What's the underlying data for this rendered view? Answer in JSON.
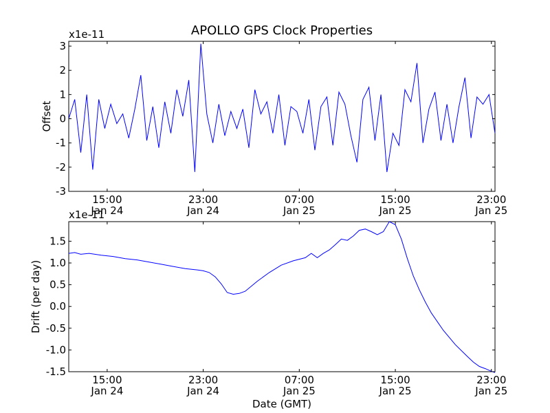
{
  "chart_data": {
    "title": "APOLLO GPS Clock Properties",
    "xlabel": "Date (GMT)",
    "x_ticks": [
      {
        "time": "15:00",
        "date": "Jan 24",
        "hours": 15
      },
      {
        "time": "23:00",
        "date": "Jan 24",
        "hours": 23
      },
      {
        "time": "07:00",
        "date": "Jan 25",
        "hours": 31
      },
      {
        "time": "15:00",
        "date": "Jan 25",
        "hours": 39
      },
      {
        "time": "23:00",
        "date": "Jan 25",
        "hours": 47
      }
    ],
    "x_range_hours": [
      11.8,
      47.3
    ],
    "colors": {
      "series": "#0000ff"
    },
    "panels": [
      {
        "type": "line",
        "ylabel": "Offset",
        "offset_text": "x1e-11",
        "ylim": [
          -3,
          3.2
        ],
        "y_ticks": [
          "-3",
          "-2",
          "-1",
          "0",
          "1",
          "2",
          "3"
        ],
        "y_tick_values": [
          -3,
          -2,
          -1,
          0,
          1,
          2,
          3
        ],
        "series": [
          {
            "x": [
              11.8,
              12.3,
              12.8,
              13.3,
              13.8,
              14.3,
              14.8,
              15.3,
              15.8,
              16.3,
              16.8,
              17.3,
              17.8,
              18.3,
              18.8,
              19.3,
              19.8,
              20.3,
              20.8,
              21.3,
              21.8,
              22.3,
              22.8,
              23.3,
              23.8,
              24.3,
              24.8,
              25.3,
              25.8,
              26.3,
              26.8,
              27.3,
              27.8,
              28.3,
              28.8,
              29.3,
              29.8,
              30.3,
              30.8,
              31.3,
              31.8,
              32.3,
              32.8,
              33.3,
              33.8,
              34.3,
              34.8,
              35.3,
              35.8,
              36.3,
              36.8,
              37.3,
              37.8,
              38.3,
              38.8,
              39.3,
              39.8,
              40.3,
              40.8,
              41.3,
              41.8,
              42.3,
              42.8,
              43.3,
              43.8,
              44.3,
              44.8,
              45.3,
              45.8,
              46.3,
              46.8,
              47.3
            ],
            "values": [
              0.0,
              0.8,
              -1.4,
              1.0,
              -2.1,
              0.8,
              -0.4,
              0.6,
              -0.2,
              0.2,
              -0.8,
              0.4,
              1.8,
              -0.9,
              0.5,
              -1.2,
              0.7,
              -0.6,
              1.2,
              0.1,
              1.6,
              -2.2,
              3.1,
              0.2,
              -1.0,
              0.6,
              -0.7,
              0.3,
              -0.4,
              0.4,
              -1.2,
              1.2,
              0.2,
              0.7,
              -0.6,
              1.0,
              -1.1,
              0.5,
              0.3,
              -0.6,
              0.8,
              -1.3,
              0.5,
              0.9,
              -1.1,
              1.1,
              0.6,
              -0.7,
              -1.8,
              0.8,
              1.3,
              -0.9,
              1.0,
              -2.2,
              -0.6,
              -1.1,
              1.2,
              0.7,
              2.3,
              -1.0,
              0.4,
              1.1,
              -0.9,
              0.6,
              -1.0,
              0.5,
              1.7,
              -0.8,
              0.9,
              0.6,
              1.0,
              -0.6
            ]
          }
        ]
      },
      {
        "type": "line",
        "ylabel": "Drift (per day)",
        "offset_text": "x1e-11",
        "ylim": [
          -1.5,
          1.95
        ],
        "y_ticks": [
          "-1.5",
          "-1.0",
          "-0.5",
          "0.0",
          "0.5",
          "1.0",
          "1.5"
        ],
        "y_tick_values": [
          -1.5,
          -1.0,
          -0.5,
          0.0,
          0.5,
          1.0,
          1.5
        ],
        "series": [
          {
            "x": [
              11.8,
              12.3,
              12.8,
              13.5,
              14.5,
              15.5,
              16.5,
              17.5,
              18.5,
              19.5,
              20.5,
              21.5,
              22.5,
              23.0,
              23.5,
              24.0,
              24.5,
              25.0,
              25.5,
              26.0,
              26.5,
              27.5,
              28.5,
              29.5,
              30.5,
              31.5,
              32.0,
              32.5,
              33.0,
              33.5,
              34.0,
              34.5,
              35.0,
              35.5,
              36.0,
              36.5,
              37.0,
              37.5,
              38.0,
              38.5,
              39.0,
              39.5,
              40.0,
              40.5,
              41.0,
              41.5,
              42.0,
              43.0,
              44.0,
              45.0,
              45.5,
              46.0,
              46.5,
              47.0,
              47.3
            ],
            "values": [
              1.22,
              1.24,
              1.2,
              1.22,
              1.18,
              1.15,
              1.1,
              1.07,
              1.02,
              0.97,
              0.92,
              0.87,
              0.84,
              0.82,
              0.78,
              0.68,
              0.52,
              0.32,
              0.28,
              0.3,
              0.35,
              0.58,
              0.78,
              0.95,
              1.05,
              1.12,
              1.22,
              1.12,
              1.22,
              1.3,
              1.42,
              1.55,
              1.52,
              1.62,
              1.75,
              1.78,
              1.72,
              1.65,
              1.72,
              1.95,
              1.88,
              1.55,
              1.1,
              0.7,
              0.38,
              0.1,
              -0.15,
              -0.55,
              -0.88,
              -1.15,
              -1.28,
              -1.38,
              -1.43,
              -1.49,
              -1.52
            ]
          }
        ]
      }
    ]
  }
}
